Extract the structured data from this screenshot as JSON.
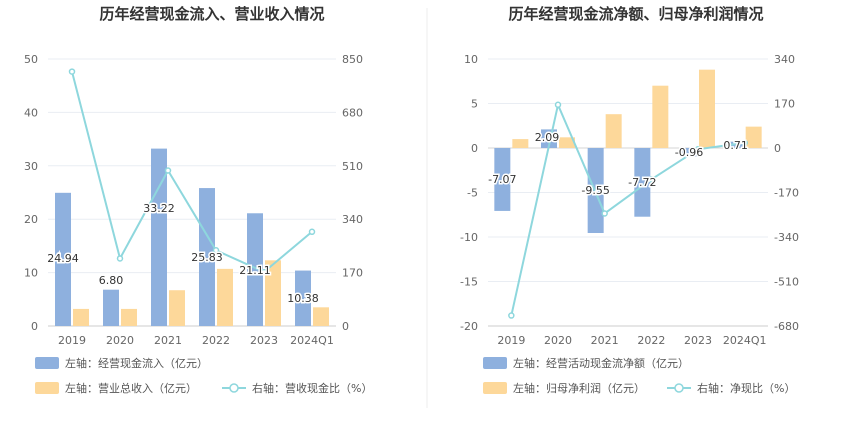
{
  "chart_data": [
    {
      "type": "bar",
      "title": "历年经营现金流入、营业收入情况",
      "categories": [
        "2019",
        "2020",
        "2021",
        "2022",
        "2023",
        "2024Q1"
      ],
      "left_axis": {
        "ticks": [
          "0",
          "10",
          "20",
          "30",
          "40",
          "50"
        ],
        "ylim": [
          0,
          50
        ]
      },
      "right_axis": {
        "ticks": [
          "0",
          "170",
          "340",
          "510",
          "680",
          "850"
        ],
        "ylim": [
          0,
          850
        ]
      },
      "series": [
        {
          "name": "左轴：经营现金流入（亿元）",
          "type": "bar",
          "axis": "left",
          "color": "#8eb0de",
          "values": [
            24.94,
            6.8,
            33.22,
            25.83,
            21.11,
            10.38
          ],
          "labels": [
            "24.94",
            "6.80",
            "33.22",
            "25.83",
            "21.11",
            "10.38"
          ]
        },
        {
          "name": "左轴：营业总收入（亿元）",
          "type": "bar",
          "axis": "left",
          "color": "#fdd89a",
          "values": [
            3.2,
            3.2,
            6.7,
            10.7,
            12.3,
            3.5
          ]
        },
        {
          "name": "右轴：营收现金比（%）",
          "type": "line",
          "axis": "right",
          "color": "#8ed7dd",
          "values": [
            810,
            215,
            495,
            241,
            172,
            300
          ]
        }
      ],
      "grid": true,
      "legend": "bottom"
    },
    {
      "type": "bar",
      "title": "历年经营现金流净额、归母净利润情况",
      "categories": [
        "2019",
        "2020",
        "2021",
        "2022",
        "2023",
        "2024Q1"
      ],
      "left_axis": {
        "ticks": [
          "-20",
          "-15",
          "-10",
          "-5",
          "0",
          "5",
          "10"
        ],
        "ylim": [
          -20,
          10
        ]
      },
      "right_axis": {
        "ticks": [
          "-680",
          "-510",
          "-340",
          "-170",
          "0",
          "170",
          "340"
        ],
        "ylim": [
          -680,
          340
        ]
      },
      "series": [
        {
          "name": "左轴：经营活动现金流净额（亿元）",
          "type": "bar",
          "axis": "left",
          "color": "#8eb0de",
          "values": [
            -7.07,
            2.09,
            -9.55,
            -7.72,
            -0.96,
            0.71
          ],
          "labels": [
            "-7.07",
            "2.09",
            "-9.55",
            "-7.72",
            "-0.96",
            "0.71"
          ]
        },
        {
          "name": "左轴：归母净利润（亿元）",
          "type": "bar",
          "axis": "left",
          "color": "#fdd89a",
          "values": [
            1.0,
            1.2,
            3.8,
            7.0,
            8.8,
            2.4
          ]
        },
        {
          "name": "右轴：净现比（%）",
          "type": "line",
          "axis": "right",
          "color": "#8ed7dd",
          "values": [
            -640,
            165,
            -250,
            -120,
            -5,
            20
          ]
        }
      ],
      "grid": true,
      "legend": "bottom"
    }
  ]
}
